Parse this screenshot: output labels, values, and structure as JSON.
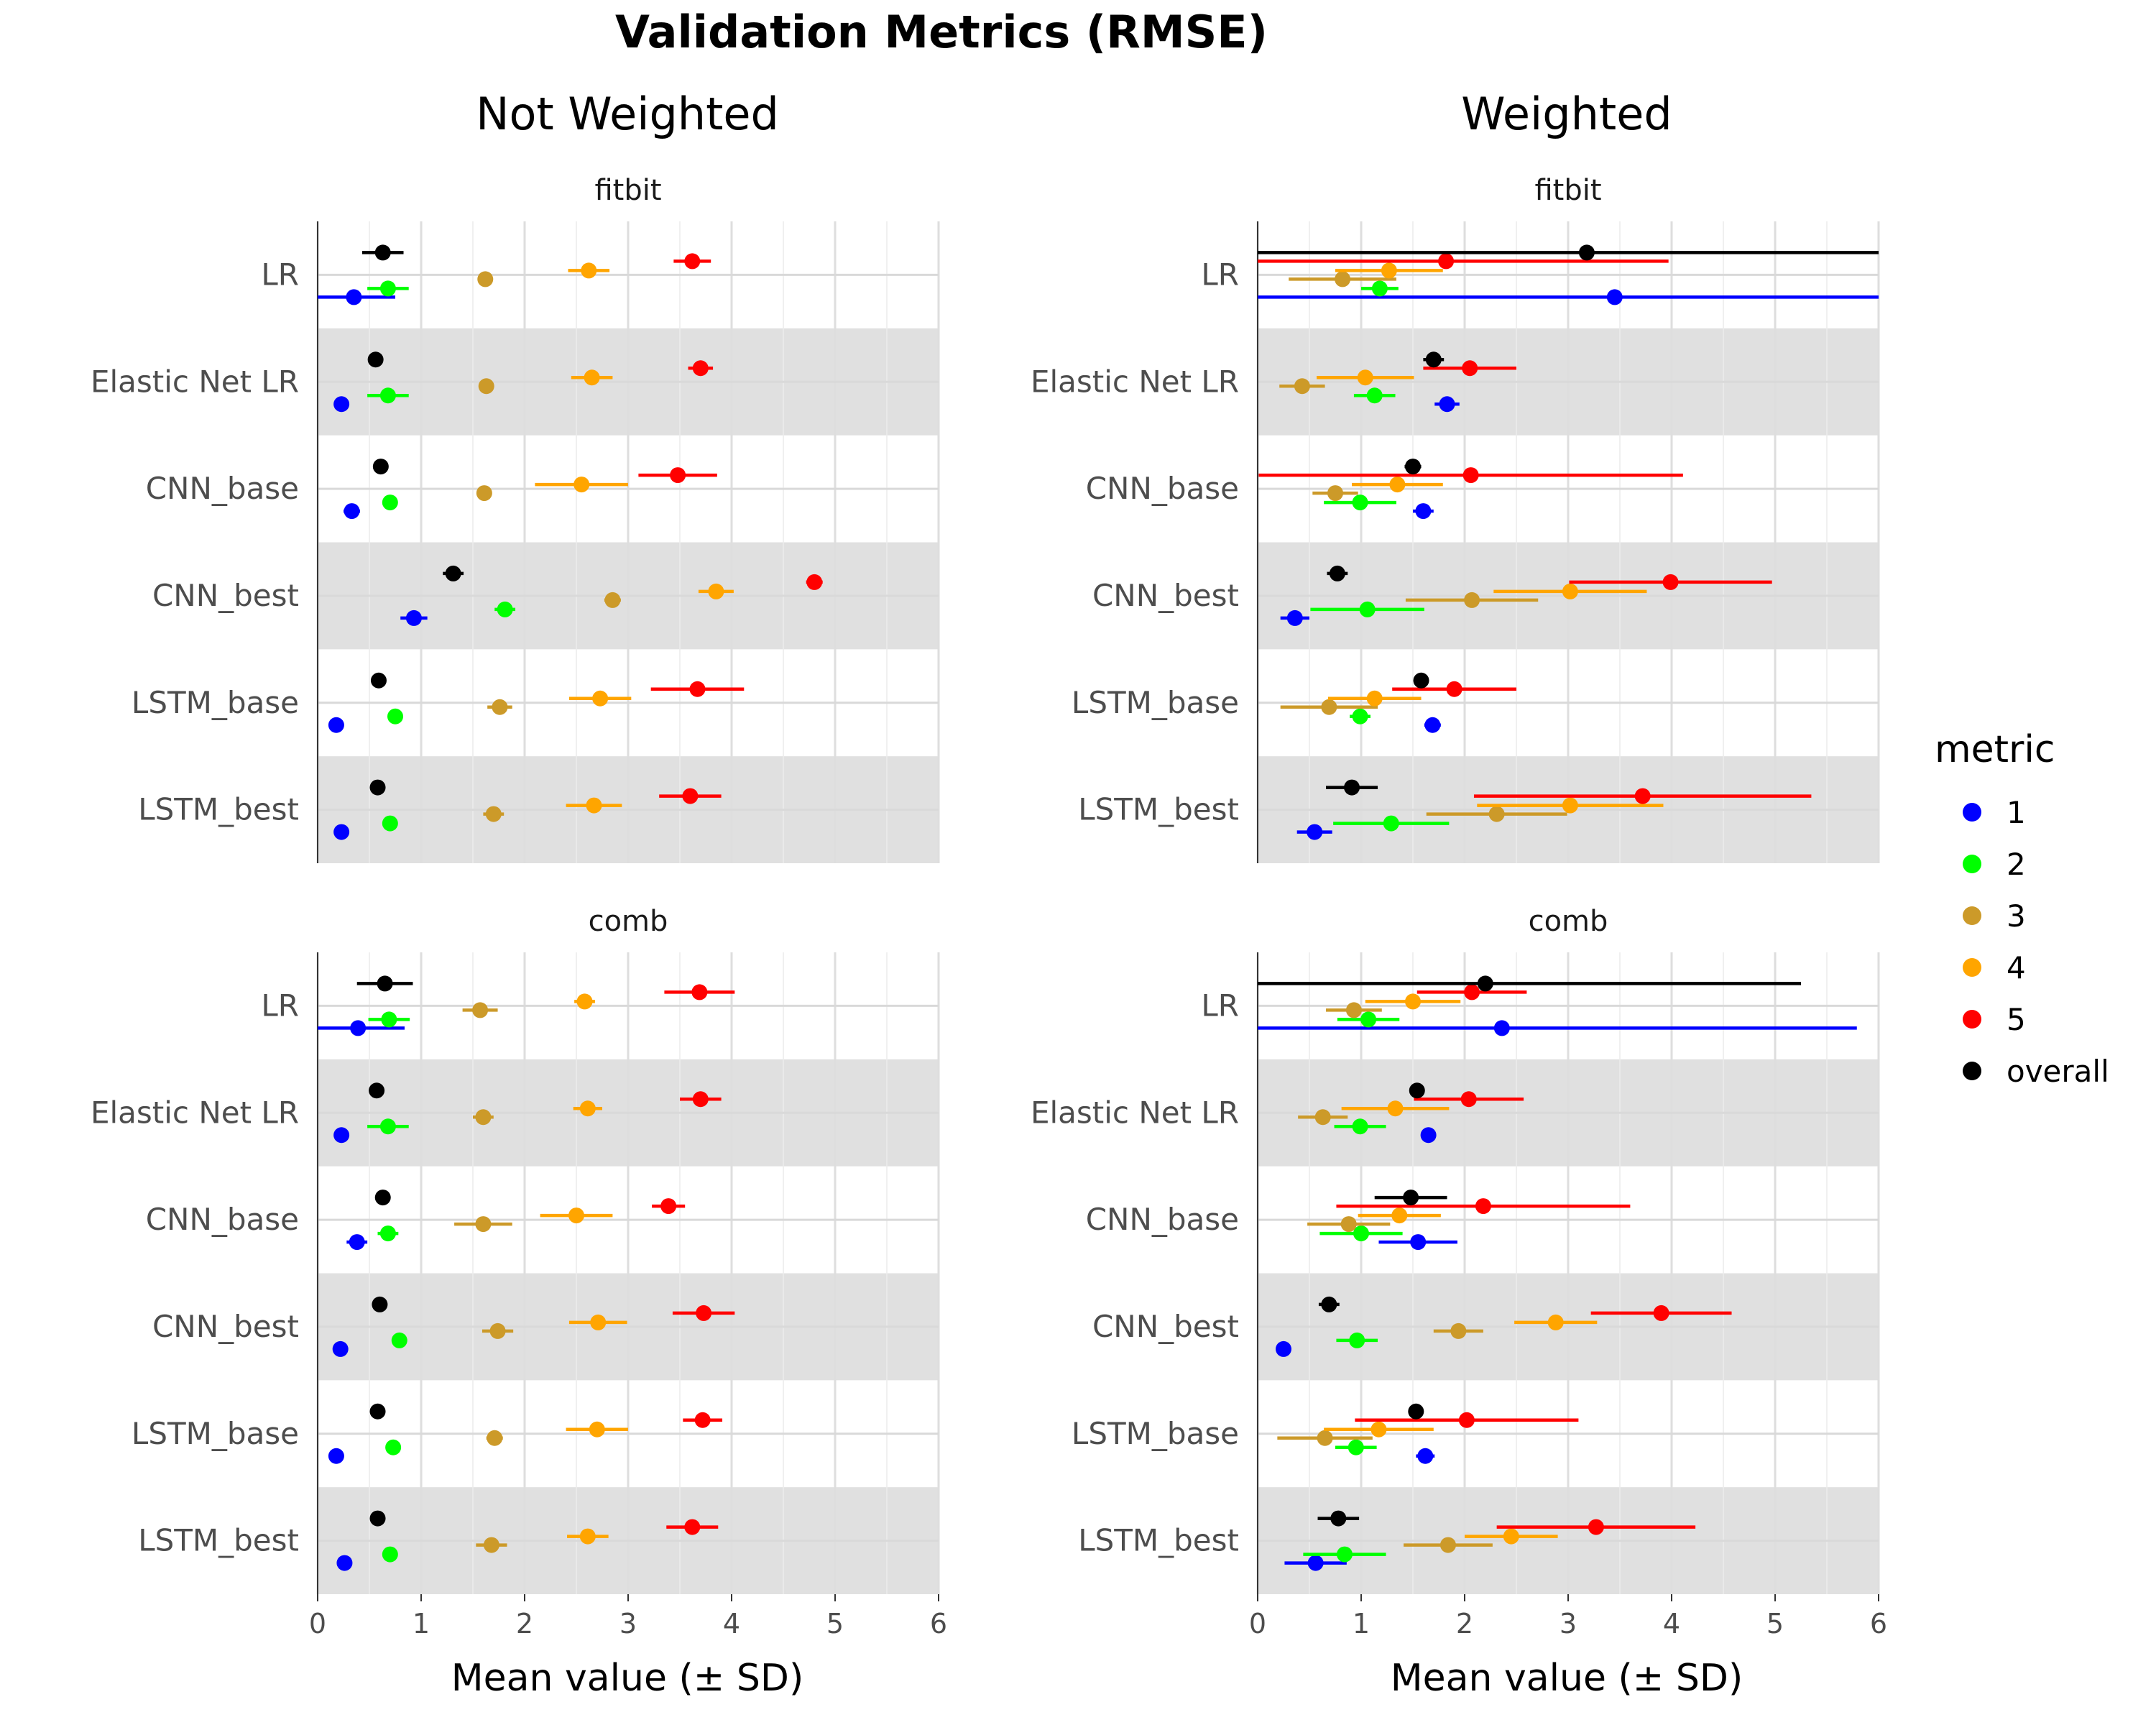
{
  "chart_data": {
    "type": "scatter",
    "subtype": "dot-and-whisker (mean ± SD), faceted 2x2",
    "title": "Validation Metrics (RMSE)",
    "column_titles": [
      "Not Weighted",
      "Weighted"
    ],
    "row_titles": [
      "fitbit",
      "comb"
    ],
    "xlabel": "Mean value (± SD)",
    "xlim": [
      0,
      6
    ],
    "xticks": [
      "0",
      "1",
      "2",
      "3",
      "4",
      "5",
      "6"
    ],
    "models": [
      "LR",
      "Elastic Net LR",
      "CNN_base",
      "CNN_best",
      "LSTM_base",
      "LSTM_best"
    ],
    "legend": {
      "title": "metric",
      "position": "right",
      "items": [
        {
          "label": "1",
          "color": "#0000ff"
        },
        {
          "label": "2",
          "color": "#00ff00"
        },
        {
          "label": "3",
          "color": "#cc9a29"
        },
        {
          "label": "4",
          "color": "#ffa500"
        },
        {
          "label": "5",
          "color": "#ff0000"
        },
        {
          "label": "overall",
          "color": "#000000"
        }
      ]
    },
    "metric_order_top_to_bottom": [
      "overall",
      "5",
      "4",
      "3",
      "2",
      "1"
    ],
    "note": "Each entry is [mean, sd] in metric order 1,2,3,4,5,overall",
    "panels": [
      {
        "column": "Not Weighted",
        "row": "fitbit",
        "values": {
          "LR": [
            [
              0.35,
              0.4
            ],
            [
              0.68,
              0.2
            ],
            [
              1.62,
              0.05
            ],
            [
              2.62,
              0.2
            ],
            [
              3.62,
              0.18
            ],
            [
              0.63,
              0.2
            ]
          ],
          "Elastic Net LR": [
            [
              0.23,
              0.0
            ],
            [
              0.68,
              0.2
            ],
            [
              1.63,
              0.05
            ],
            [
              2.65,
              0.2
            ],
            [
              3.7,
              0.12
            ],
            [
              0.56,
              0.0
            ]
          ],
          "CNN_base": [
            [
              0.33,
              0.08
            ],
            [
              0.7,
              0.05
            ],
            [
              1.61,
              0.07
            ],
            [
              2.55,
              0.45
            ],
            [
              3.48,
              0.38
            ],
            [
              0.61,
              0.0
            ]
          ],
          "CNN_best": [
            [
              0.93,
              0.13
            ],
            [
              1.81,
              0.1
            ],
            [
              2.85,
              0.08
            ],
            [
              3.85,
              0.17
            ],
            [
              4.8,
              0.08
            ],
            [
              1.31,
              0.1
            ]
          ],
          "LSTM_base": [
            [
              0.18,
              0.0
            ],
            [
              0.75,
              0.07
            ],
            [
              1.76,
              0.12
            ],
            [
              2.73,
              0.3
            ],
            [
              3.67,
              0.45
            ],
            [
              0.59,
              0.0
            ]
          ],
          "LSTM_best": [
            [
              0.23,
              0.0
            ],
            [
              0.7,
              0.0
            ],
            [
              1.7,
              0.1
            ],
            [
              2.67,
              0.27
            ],
            [
              3.6,
              0.3
            ],
            [
              0.58,
              0.0
            ]
          ]
        }
      },
      {
        "column": "Weighted",
        "row": "fitbit",
        "values": {
          "LR": [
            [
              3.45,
              3.5
            ],
            [
              1.18,
              0.18
            ],
            [
              0.82,
              0.52
            ],
            [
              1.27,
              0.52
            ],
            [
              1.82,
              2.15
            ],
            [
              3.18,
              3.5
            ]
          ],
          "Elastic Net LR": [
            [
              1.83,
              0.12
            ],
            [
              1.13,
              0.2
            ],
            [
              0.43,
              0.22
            ],
            [
              1.04,
              0.47
            ],
            [
              2.05,
              0.45
            ],
            [
              1.7,
              0.1
            ]
          ],
          "CNN_base": [
            [
              1.6,
              0.1
            ],
            [
              0.99,
              0.35
            ],
            [
              0.75,
              0.22
            ],
            [
              1.35,
              0.44
            ],
            [
              2.06,
              2.05
            ],
            [
              1.5,
              0.08
            ]
          ],
          "CNN_best": [
            [
              0.36,
              0.14
            ],
            [
              1.06,
              0.55
            ],
            [
              2.07,
              0.64
            ],
            [
              3.02,
              0.74
            ],
            [
              3.99,
              0.98
            ],
            [
              0.77,
              0.1
            ]
          ],
          "LSTM_base": [
            [
              1.69,
              0.08
            ],
            [
              0.99,
              0.1
            ],
            [
              0.69,
              0.47
            ],
            [
              1.13,
              0.45
            ],
            [
              1.9,
              0.6
            ],
            [
              1.58,
              0.05
            ]
          ],
          "LSTM_best": [
            [
              0.55,
              0.17
            ],
            [
              1.29,
              0.56
            ],
            [
              2.31,
              0.68
            ],
            [
              3.02,
              0.9
            ],
            [
              3.72,
              1.63
            ],
            [
              0.91,
              0.25
            ]
          ]
        }
      },
      {
        "column": "Not Weighted",
        "row": "comb",
        "values": {
          "LR": [
            [
              0.39,
              0.45
            ],
            [
              0.69,
              0.2
            ],
            [
              1.57,
              0.17
            ],
            [
              2.58,
              0.1
            ],
            [
              3.69,
              0.34
            ],
            [
              0.65,
              0.27
            ]
          ],
          "Elastic Net LR": [
            [
              0.23,
              0.0
            ],
            [
              0.68,
              0.2
            ],
            [
              1.6,
              0.1
            ],
            [
              2.61,
              0.14
            ],
            [
              3.7,
              0.2
            ],
            [
              0.57,
              0.0
            ]
          ],
          "CNN_base": [
            [
              0.38,
              0.1
            ],
            [
              0.68,
              0.1
            ],
            [
              1.6,
              0.28
            ],
            [
              2.5,
              0.35
            ],
            [
              3.39,
              0.16
            ],
            [
              0.63,
              0.0
            ]
          ],
          "CNN_best": [
            [
              0.22,
              0.0
            ],
            [
              0.79,
              0.05
            ],
            [
              1.74,
              0.15
            ],
            [
              2.71,
              0.28
            ],
            [
              3.73,
              0.3
            ],
            [
              0.6,
              0.0
            ]
          ],
          "LSTM_base": [
            [
              0.18,
              0.0
            ],
            [
              0.73,
              0.05
            ],
            [
              1.71,
              0.08
            ],
            [
              2.7,
              0.3
            ],
            [
              3.72,
              0.19
            ],
            [
              0.58,
              0.0
            ]
          ],
          "LSTM_best": [
            [
              0.26,
              0.0
            ],
            [
              0.7,
              0.0
            ],
            [
              1.68,
              0.15
            ],
            [
              2.61,
              0.2
            ],
            [
              3.62,
              0.25
            ],
            [
              0.58,
              0.0
            ]
          ]
        }
      },
      {
        "column": "Weighted",
        "row": "comb",
        "values": {
          "LR": [
            [
              2.36,
              3.43
            ],
            [
              1.07,
              0.3
            ],
            [
              0.93,
              0.27
            ],
            [
              1.5,
              0.46
            ],
            [
              2.07,
              0.53
            ],
            [
              2.2,
              3.05
            ]
          ],
          "Elastic Net LR": [
            [
              1.65,
              0.05
            ],
            [
              0.99,
              0.25
            ],
            [
              0.63,
              0.24
            ],
            [
              1.33,
              0.52
            ],
            [
              2.04,
              0.53
            ],
            [
              1.54,
              0.0
            ]
          ],
          "CNN_base": [
            [
              1.55,
              0.38
            ],
            [
              1.0,
              0.4
            ],
            [
              0.88,
              0.4
            ],
            [
              1.37,
              0.4
            ],
            [
              2.18,
              1.42
            ],
            [
              1.48,
              0.35
            ]
          ],
          "CNN_best": [
            [
              0.25,
              0.05
            ],
            [
              0.96,
              0.2
            ],
            [
              1.94,
              0.24
            ],
            [
              2.88,
              0.4
            ],
            [
              3.9,
              0.68
            ],
            [
              0.69,
              0.1
            ]
          ],
          "LSTM_base": [
            [
              1.62,
              0.09
            ],
            [
              0.95,
              0.2
            ],
            [
              0.65,
              0.46
            ],
            [
              1.17,
              0.53
            ],
            [
              2.02,
              1.08
            ],
            [
              1.53,
              0.05
            ]
          ],
          "LSTM_best": [
            [
              0.56,
              0.3
            ],
            [
              0.84,
              0.4
            ],
            [
              1.84,
              0.43
            ],
            [
              2.45,
              0.45
            ],
            [
              3.27,
              0.96
            ],
            [
              0.78,
              0.2
            ]
          ]
        }
      }
    ]
  }
}
